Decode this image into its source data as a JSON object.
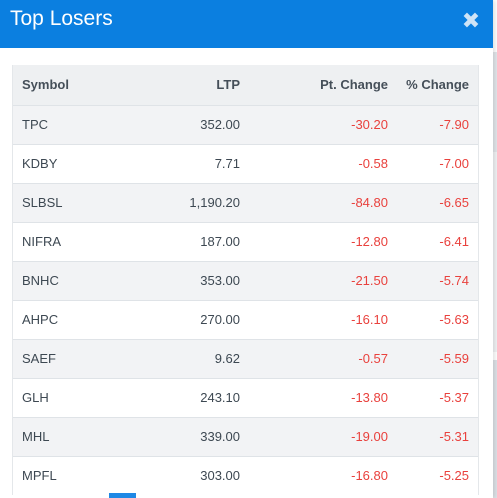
{
  "modal": {
    "title": "Top Losers",
    "close_glyph": "✖",
    "close_icon": "close-icon"
  },
  "table": {
    "columns": [
      "Symbol",
      "LTP",
      "Pt. Change",
      "% Change"
    ],
    "rows": [
      {
        "symbol": "TPC",
        "ltp": "352.00",
        "pt_change": "-30.20",
        "pct_change": "-7.90"
      },
      {
        "symbol": "KDBY",
        "ltp": "7.71",
        "pt_change": "-0.58",
        "pct_change": "-7.00"
      },
      {
        "symbol": "SLBSL",
        "ltp": "1,190.20",
        "pt_change": "-84.80",
        "pct_change": "-6.65"
      },
      {
        "symbol": "NIFRA",
        "ltp": "187.00",
        "pt_change": "-12.80",
        "pct_change": "-6.41"
      },
      {
        "symbol": "BNHC",
        "ltp": "353.00",
        "pt_change": "-21.50",
        "pct_change": "-5.74"
      },
      {
        "symbol": "AHPC",
        "ltp": "270.00",
        "pt_change": "-16.10",
        "pct_change": "-5.63"
      },
      {
        "symbol": "SAEF",
        "ltp": "9.62",
        "pt_change": "-0.57",
        "pct_change": "-5.59"
      },
      {
        "symbol": "GLH",
        "ltp": "243.10",
        "pt_change": "-13.80",
        "pct_change": "-5.37"
      },
      {
        "symbol": "MHL",
        "ltp": "339.00",
        "pt_change": "-19.00",
        "pct_change": "-5.31"
      },
      {
        "symbol": "MPFL",
        "ltp": "303.00",
        "pt_change": "-16.80",
        "pct_change": "-5.25"
      }
    ]
  },
  "colors": {
    "header_bg": "#0b7fe0",
    "negative": "#e9413d",
    "row_stripe": "#f2f3f5"
  }
}
